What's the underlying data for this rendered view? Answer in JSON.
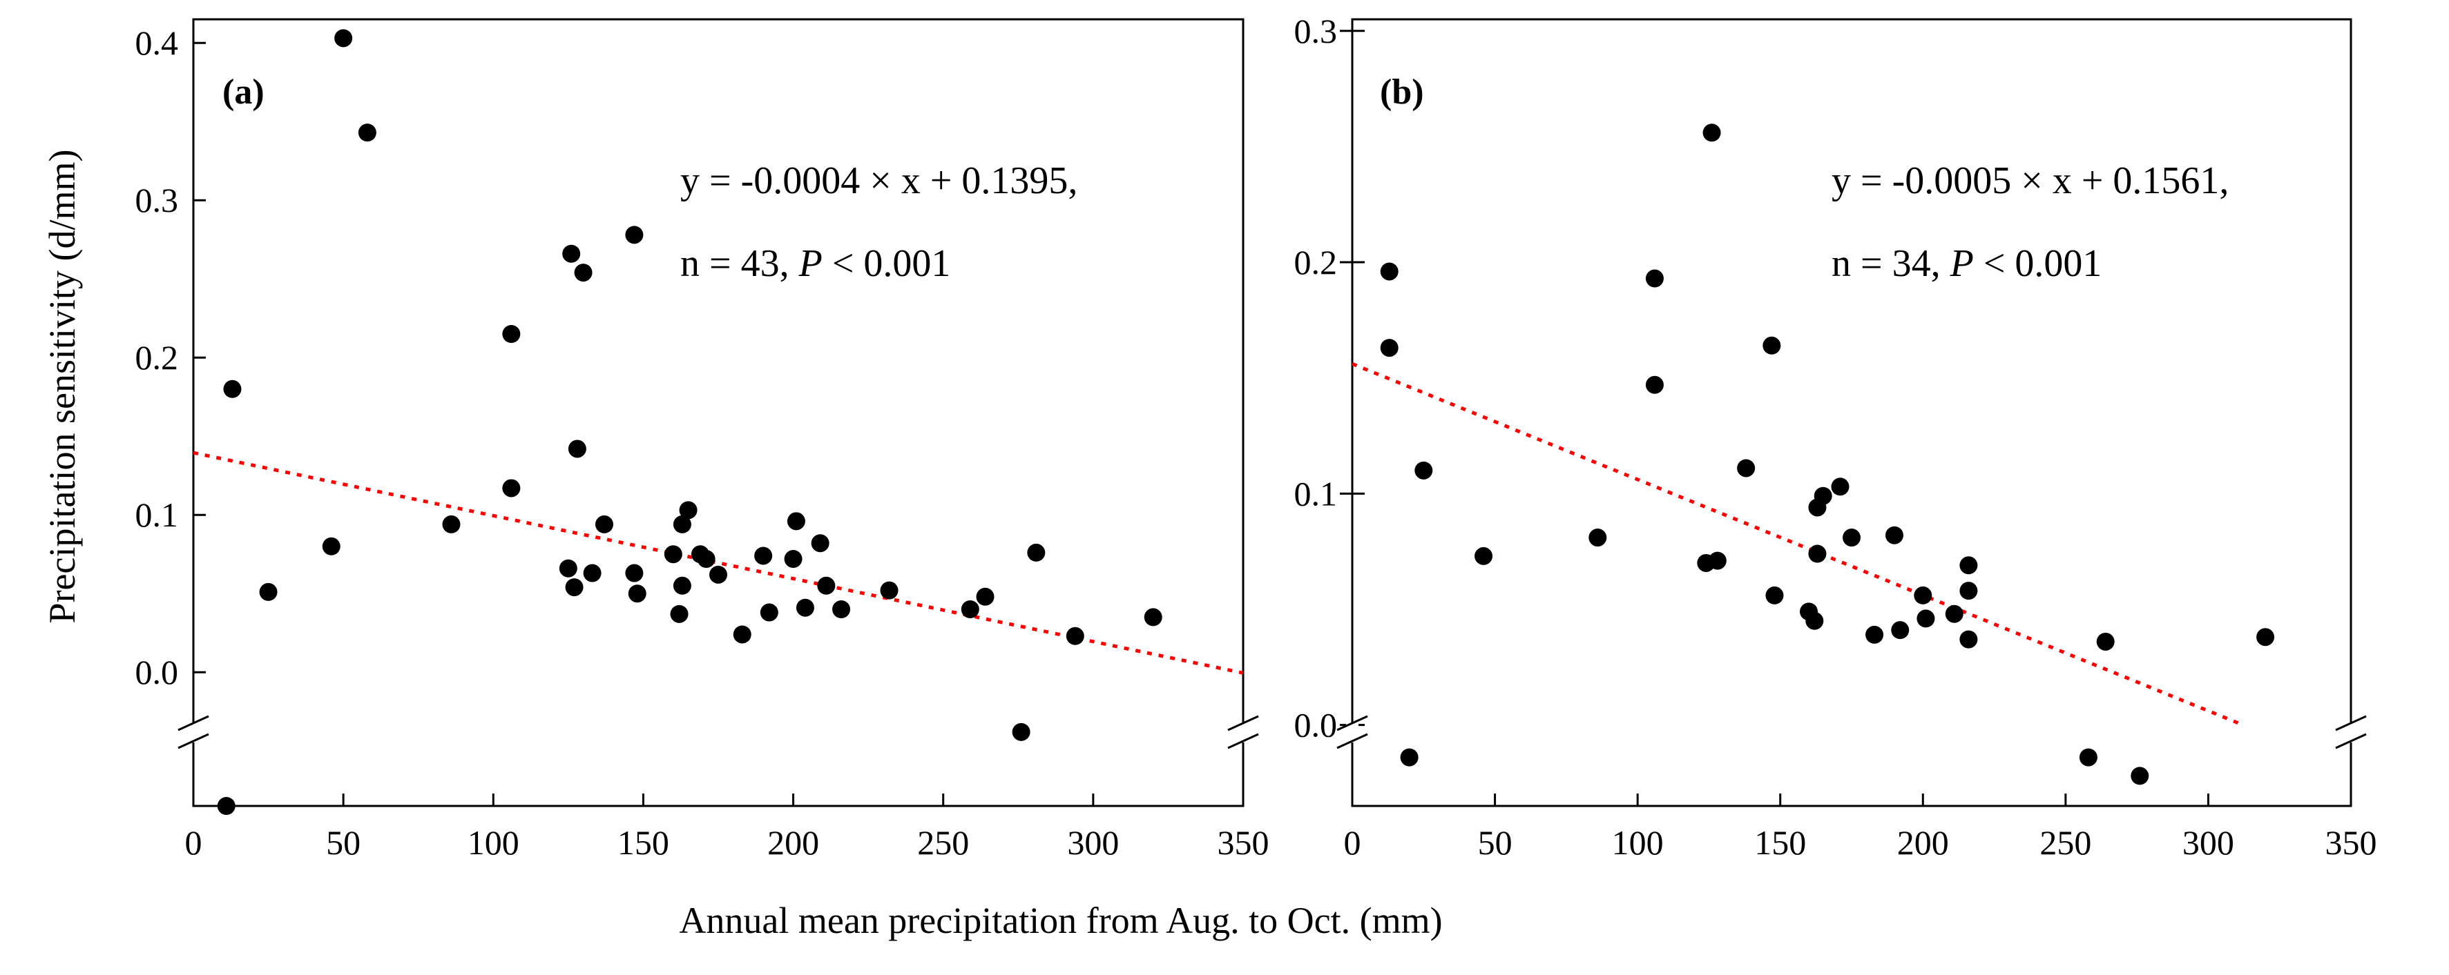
{
  "figure": {
    "ylabel": "Precipitation sensitivity (d/mm)",
    "xlabel": "Annual mean precipitation from Aug. to Oct. (mm)"
  },
  "chart_data": [
    {
      "type": "scatter",
      "panel": "(a)",
      "xlabel": "Annual mean precipitation from Aug. to Oct. (mm)",
      "ylabel": "Precipitation sensitivity (d/mm)",
      "xlim": [
        0,
        350
      ],
      "ylim": [
        -0.085,
        0.415
      ],
      "y_axis_break": true,
      "x_ticks": [
        "0",
        "50",
        "100",
        "150",
        "200",
        "250",
        "300",
        "350"
      ],
      "y_ticks": [
        "0.0",
        "0.1",
        "0.2",
        "0.3",
        "0.4"
      ],
      "equation_text": "y = -0.0004 × x + 0.1395,",
      "stats_prefix": "n = 43, ",
      "stats_p": "P",
      "stats_suffix": " < 0.001",
      "fit": {
        "slope": -0.0004,
        "intercept": 0.1395,
        "x_range": [
          0,
          350
        ]
      },
      "points": [
        [
          11,
          -0.085
        ],
        [
          13,
          0.18
        ],
        [
          25,
          0.051
        ],
        [
          46,
          0.08
        ],
        [
          50,
          0.403
        ],
        [
          58,
          0.343
        ],
        [
          86,
          0.094
        ],
        [
          106,
          0.215
        ],
        [
          106,
          0.117
        ],
        [
          125,
          0.066
        ],
        [
          126,
          0.266
        ],
        [
          127,
          0.054
        ],
        [
          128,
          0.142
        ],
        [
          130,
          0.254
        ],
        [
          133,
          0.063
        ],
        [
          137,
          0.094
        ],
        [
          147,
          0.278
        ],
        [
          147,
          0.063
        ],
        [
          148,
          0.05
        ],
        [
          160,
          0.075
        ],
        [
          162,
          0.037
        ],
        [
          163,
          0.055
        ],
        [
          163,
          0.094
        ],
        [
          165,
          0.103
        ],
        [
          169,
          0.075
        ],
        [
          171,
          0.072
        ],
        [
          175,
          0.062
        ],
        [
          183,
          0.024
        ],
        [
          190,
          0.074
        ],
        [
          192,
          0.038
        ],
        [
          200,
          0.072
        ],
        [
          201,
          0.096
        ],
        [
          204,
          0.041
        ],
        [
          209,
          0.082
        ],
        [
          211,
          0.055
        ],
        [
          216,
          0.04
        ],
        [
          232,
          0.052
        ],
        [
          259,
          0.04
        ],
        [
          264,
          0.048
        ],
        [
          276,
          -0.038
        ],
        [
          281,
          0.076
        ],
        [
          294,
          0.023
        ],
        [
          320,
          0.035
        ]
      ]
    },
    {
      "type": "scatter",
      "panel": "(b)",
      "xlabel": "Annual mean precipitation from Aug. to Oct. (mm)",
      "xlim": [
        0,
        350
      ],
      "ylim": [
        -0.035,
        0.305
      ],
      "y_axis_break": true,
      "x_ticks": [
        "0",
        "50",
        "100",
        "150",
        "200",
        "250",
        "300",
        "350"
      ],
      "y_ticks": [
        "0.0",
        "0.1",
        "0.2",
        "0.3"
      ],
      "equation_text": "y = -0.0005 × x + 0.1561,",
      "stats_prefix": "n = 34, ",
      "stats_p": "P",
      "stats_suffix": " < 0.001",
      "fit": {
        "slope": -0.0005,
        "intercept": 0.1561,
        "x_range": [
          0,
          312
        ]
      },
      "points": [
        [
          13,
          0.196
        ],
        [
          13,
          0.163
        ],
        [
          20,
          -0.014
        ],
        [
          25,
          0.11
        ],
        [
          46,
          0.073
        ],
        [
          86,
          0.081
        ],
        [
          106,
          0.193
        ],
        [
          106,
          0.147
        ],
        [
          124,
          0.07
        ],
        [
          128,
          0.071
        ],
        [
          126,
          0.256
        ],
        [
          138,
          0.111
        ],
        [
          147,
          0.164
        ],
        [
          148,
          0.056
        ],
        [
          160,
          0.049
        ],
        [
          162,
          0.045
        ],
        [
          163,
          0.074
        ],
        [
          163,
          0.094
        ],
        [
          165,
          0.099
        ],
        [
          171,
          0.103
        ],
        [
          175,
          0.081
        ],
        [
          183,
          0.039
        ],
        [
          190,
          0.082
        ],
        [
          192,
          0.041
        ],
        [
          200,
          0.056
        ],
        [
          201,
          0.046
        ],
        [
          211,
          0.048
        ],
        [
          216,
          0.069
        ],
        [
          216,
          0.058
        ],
        [
          216,
          0.037
        ],
        [
          258,
          -0.014
        ],
        [
          264,
          0.036
        ],
        [
          276,
          -0.022
        ],
        [
          320,
          0.038
        ]
      ]
    }
  ]
}
